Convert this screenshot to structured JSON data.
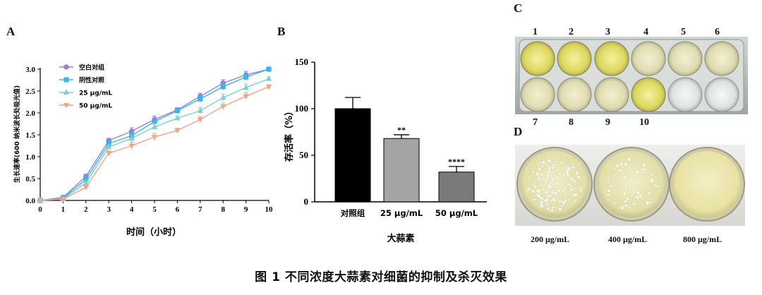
{
  "panels": {
    "a": "A",
    "b": "B",
    "c": "C",
    "d": "D"
  },
  "caption": "图 1 不同浓度大蒜素对细菌的抑制及杀灭效果",
  "photo_c": {
    "well_numbers_top": [
      "1",
      "2",
      "3",
      "4",
      "5",
      "6"
    ],
    "well_numbers_bottom": [
      "7",
      "8",
      "9",
      "10"
    ]
  },
  "photo_d": {
    "labels": [
      "200 μg/mL",
      "400 μg/mL",
      "800 μg/mL"
    ]
  },
  "chart_data": [
    {
      "type": "line",
      "panel": "A",
      "xlabel": "时间（小时）",
      "ylabel": "生长速率(600 纳米波长处吸光值)",
      "x": [
        0,
        1,
        2,
        3,
        4,
        5,
        6,
        7,
        8,
        9,
        10
      ],
      "xticks": [
        "0",
        "1",
        "2",
        "3",
        "4",
        "5",
        "6",
        "7",
        "8",
        "9",
        "10"
      ],
      "xlim": [
        0,
        10
      ],
      "ylim": [
        0,
        3.0
      ],
      "yticks": [
        "0.0",
        "0.5",
        "1.0",
        "1.5",
        "2.0",
        "2.5",
        "3.0"
      ],
      "legend_position": "top-left",
      "series": [
        {
          "name": "空白对组",
          "color": "#9b7fd4",
          "marker": "circle",
          "values": [
            0.0,
            0.07,
            0.55,
            1.37,
            1.58,
            1.85,
            2.07,
            2.38,
            2.68,
            2.87,
            3.0
          ]
        },
        {
          "name": "阴性对照",
          "color": "#36b7ea",
          "marker": "square",
          "values": [
            0.0,
            0.05,
            0.48,
            1.3,
            1.48,
            1.8,
            2.05,
            2.32,
            2.6,
            2.82,
            3.0
          ]
        },
        {
          "name": "25 μg/mL",
          "color": "#7dcfd3",
          "marker": "triangle-up",
          "values": [
            0.0,
            0.04,
            0.4,
            1.22,
            1.42,
            1.68,
            1.88,
            2.05,
            2.35,
            2.58,
            2.78
          ]
        },
        {
          "name": "50 μg/mL",
          "color": "#f4a383",
          "marker": "triangle-down",
          "values": [
            0.0,
            0.03,
            0.3,
            1.08,
            1.25,
            1.45,
            1.6,
            1.85,
            2.15,
            2.38,
            2.6
          ]
        }
      ]
    },
    {
      "type": "bar",
      "panel": "B",
      "categories": [
        "对照组",
        "25 μg/mL",
        "50 μg/mL"
      ],
      "values": [
        100,
        68,
        32
      ],
      "errors": [
        12,
        4,
        6
      ],
      "colors": [
        "#000000",
        "#a4a4a7",
        "#7a7a7d"
      ],
      "significance": [
        "",
        "**",
        "****"
      ],
      "ylabel": "存活率（%）",
      "xlabel": "大蒜素",
      "ylim": [
        0,
        150
      ],
      "yticks": [
        "0",
        "50",
        "100",
        "150"
      ]
    }
  ]
}
